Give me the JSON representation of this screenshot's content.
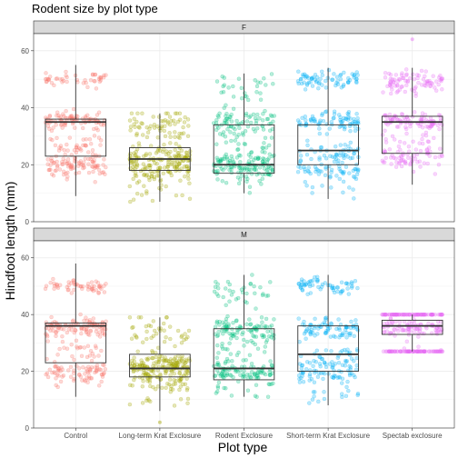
{
  "chart_data": {
    "type": "boxplot",
    "title": "Rodent size by plot type",
    "xlabel": "Plot type",
    "ylabel": "Hindfoot length (mm)",
    "categories": [
      "Control",
      "Long-term Krat Exclosure",
      "Rodent Exclosure",
      "Short-term Krat Exclosure",
      "Spectab exclosure"
    ],
    "category_colors": [
      "#F8766D",
      "#A3A500",
      "#00BF7D",
      "#00B0F6",
      "#E76BF3"
    ],
    "yticks": [
      0,
      20,
      40,
      60
    ],
    "ylim": [
      0,
      66
    ],
    "jittered_points": true,
    "grid": true,
    "facets": [
      {
        "label": "F",
        "boxes": [
          {
            "category": "Control",
            "lower_whisker": 9,
            "q1": 23,
            "median": 35,
            "q3": 36,
            "upper_whisker": 55
          },
          {
            "category": "Long-term Krat Exclosure",
            "lower_whisker": 7,
            "q1": 18,
            "median": 22,
            "q3": 26,
            "upper_whisker": 38
          },
          {
            "category": "Rodent Exclosure",
            "lower_whisker": 10,
            "q1": 17,
            "median": 20,
            "q3": 34,
            "upper_whisker": 52
          },
          {
            "category": "Short-term Krat Exclosure",
            "lower_whisker": 8,
            "q1": 20,
            "median": 25,
            "q3": 34,
            "upper_whisker": 54
          },
          {
            "category": "Spectab exclosure",
            "lower_whisker": 13,
            "q1": 24,
            "median": 35,
            "q3": 37,
            "upper_whisker": 54
          }
        ],
        "outliers": [
          {
            "category": "Spectab exclosure",
            "value": 64
          }
        ]
      },
      {
        "label": "M",
        "boxes": [
          {
            "category": "Control",
            "lower_whisker": 11,
            "q1": 23,
            "median": 36,
            "q3": 37,
            "upper_whisker": 58
          },
          {
            "category": "Long-term Krat Exclosure",
            "lower_whisker": 6,
            "q1": 18,
            "median": 21,
            "q3": 26,
            "upper_whisker": 39
          },
          {
            "category": "Rodent Exclosure",
            "lower_whisker": 11,
            "q1": 17,
            "median": 21,
            "q3": 35,
            "upper_whisker": 54
          },
          {
            "category": "Short-term Krat Exclosure",
            "lower_whisker": 8,
            "q1": 20,
            "median": 26,
            "q3": 36,
            "upper_whisker": 54
          },
          {
            "category": "Spectab exclosure",
            "lower_whisker": 27,
            "q1": 33,
            "median": 36,
            "q3": 38,
            "upper_whisker": 40
          }
        ],
        "outliers": [
          {
            "category": "Long-term Krat Exclosure",
            "value": 2
          }
        ]
      }
    ]
  }
}
